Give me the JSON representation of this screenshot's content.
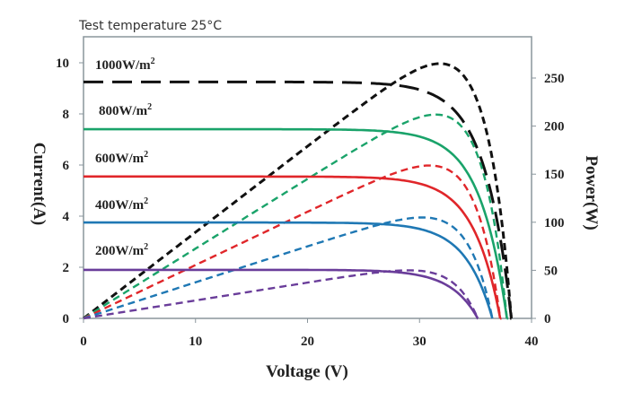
{
  "chart_data": {
    "type": "line",
    "title": "Test  temperature 25°C",
    "xlabel": "Voltage (V)",
    "ylabel": "Current(A)",
    "y2label": "Power(W)",
    "xlim": [
      0,
      40
    ],
    "ylim": [
      0,
      11
    ],
    "y2lim": [
      0,
      266
    ],
    "xticks": [
      "0",
      "10",
      "20",
      "30",
      "40"
    ],
    "yticks": [
      "0",
      "2",
      "4",
      "6",
      "8",
      "10"
    ],
    "y2ticks": [
      "0",
      "50",
      "100",
      "150",
      "200",
      "250"
    ],
    "grid": false,
    "note": "Solid/long-dash lines = current vs voltage (left axis); short-dash lines = power vs voltage (right axis)",
    "series": [
      {
        "name": "1000W/m",
        "sup": "2",
        "color": "#111111",
        "isc": 9.25,
        "voc": 38.2,
        "pmax": 265,
        "vmp": 31
      },
      {
        "name": "800W/m",
        "sup": "2",
        "color": "#1aa36a",
        "isc": 7.4,
        "voc": 37.8,
        "pmax": 212,
        "vmp": 31
      },
      {
        "name": "600W/m",
        "sup": "2",
        "color": "#e0262a",
        "isc": 5.55,
        "voc": 37.2,
        "pmax": 159,
        "vmp": 31
      },
      {
        "name": "400W/m",
        "sup": "2",
        "color": "#1f78b4",
        "isc": 3.75,
        "voc": 36.5,
        "pmax": 105,
        "vmp": 30.5
      },
      {
        "name": "200W/m",
        "sup": "2",
        "color": "#6a3d9a",
        "isc": 1.9,
        "voc": 35.2,
        "pmax": 50,
        "vmp": 30
      }
    ]
  }
}
